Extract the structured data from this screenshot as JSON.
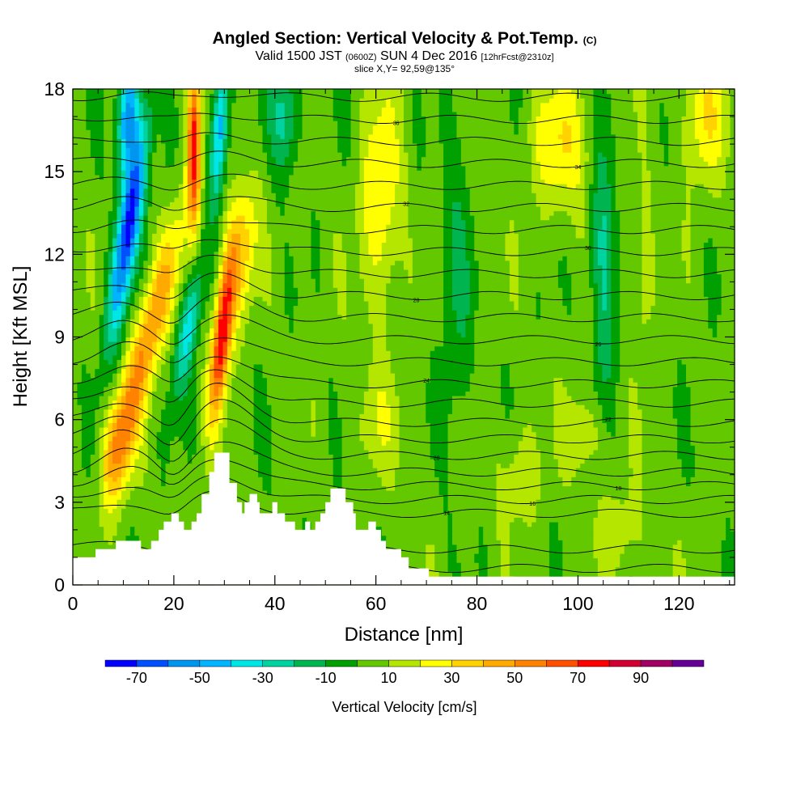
{
  "header": {
    "title": "Angled Section: Vertical Velocity & Pot.Temp.",
    "title_suffix": "(C)",
    "valid_prefix": "Valid 1500 JST",
    "valid_utc": "(0600Z)",
    "valid_date": "SUN 4 Dec 2016",
    "forecast_info": "[12hrFcst@2310z]",
    "slice_info": "slice X,Y= 92,59@135°"
  },
  "chart_data": {
    "type": "heatmap",
    "xlabel": "Distance [nm]",
    "ylabel": "Height [Kft MSL]",
    "xlim": [
      0,
      131
    ],
    "ylim": [
      0,
      18
    ],
    "x_ticks": [
      0,
      20,
      40,
      60,
      80,
      100,
      120
    ],
    "y_ticks": [
      0,
      3,
      6,
      9,
      12,
      15,
      18
    ],
    "colorbar": {
      "label": "Vertical Velocity [cm/s]",
      "tick_labels": [
        "-70",
        "-50",
        "-30",
        "-10",
        "10",
        "30",
        "50",
        "70",
        "90"
      ],
      "tick_values": [
        -70,
        -50,
        -30,
        -10,
        10,
        30,
        50,
        70,
        90
      ],
      "bins": [
        {
          "from": -80,
          "to": -70,
          "color": "#0000ff"
        },
        {
          "from": -70,
          "to": -60,
          "color": "#0050ff"
        },
        {
          "from": -60,
          "to": -50,
          "color": "#0096f0"
        },
        {
          "from": -50,
          "to": -40,
          "color": "#00b4ff"
        },
        {
          "from": -40,
          "to": -30,
          "color": "#00e6e6"
        },
        {
          "from": -30,
          "to": -20,
          "color": "#00d2a0"
        },
        {
          "from": -20,
          "to": -10,
          "color": "#00b450"
        },
        {
          "from": -10,
          "to": 0,
          "color": "#00a000"
        },
        {
          "from": 0,
          "to": 10,
          "color": "#64c800"
        },
        {
          "from": 10,
          "to": 20,
          "color": "#b4e600"
        },
        {
          "from": 20,
          "to": 30,
          "color": "#ffff00"
        },
        {
          "from": 30,
          "to": 40,
          "color": "#ffd200"
        },
        {
          "from": 40,
          "to": 50,
          "color": "#ffaa00"
        },
        {
          "from": 50,
          "to": 60,
          "color": "#ff8200"
        },
        {
          "from": 60,
          "to": 70,
          "color": "#ff5000"
        },
        {
          "from": 70,
          "to": 80,
          "color": "#ff0000"
        },
        {
          "from": 80,
          "to": 90,
          "color": "#d20032"
        },
        {
          "from": 90,
          "to": 100,
          "color": "#a00064"
        },
        {
          "from": 100,
          "to": 110,
          "color": "#640096"
        }
      ]
    },
    "velocity_features": [
      {
        "name": "downdraft",
        "x": 11,
        "y": 13,
        "sx": 2.2,
        "sy": 3.8,
        "tilt": 0.8,
        "amp": -78
      },
      {
        "name": "downdraft",
        "x": 11,
        "y": 17,
        "sx": 2.0,
        "sy": 2.0,
        "tilt": 0.3,
        "amp": -60
      },
      {
        "name": "updraft",
        "x": 15,
        "y": 9,
        "sx": 3.0,
        "sy": 4.0,
        "tilt": 1.3,
        "amp": 48
      },
      {
        "name": "updraft",
        "x": 9,
        "y": 5,
        "sx": 3.0,
        "sy": 2.0,
        "tilt": 0.5,
        "amp": 38
      },
      {
        "name": "updraft",
        "x": 24,
        "y": 16,
        "sx": 1.3,
        "sy": 3.0,
        "tilt": 0.0,
        "amp": 72
      },
      {
        "name": "downdraft",
        "x": 23,
        "y": 9.5,
        "sx": 2.0,
        "sy": 2.5,
        "tilt": 0.8,
        "amp": -38
      },
      {
        "name": "downdraft",
        "x": 29,
        "y": 16.5,
        "sx": 1.6,
        "sy": 2.4,
        "tilt": 0.3,
        "amp": -55
      },
      {
        "name": "updraft",
        "x": 29.5,
        "y": 9,
        "sx": 1.8,
        "sy": 2.8,
        "tilt": 0.5,
        "amp": 75
      },
      {
        "name": "updraft",
        "x": 33,
        "y": 12,
        "sx": 3.0,
        "sy": 2.5,
        "tilt": 0.5,
        "amp": 35
      },
      {
        "name": "downdraft",
        "x": 42,
        "y": 17,
        "sx": 3.0,
        "sy": 2.0,
        "tilt": 0.0,
        "amp": -28
      },
      {
        "name": "updraft",
        "x": 61,
        "y": 14,
        "sx": 4.0,
        "sy": 4.0,
        "tilt": 0.0,
        "amp": 26
      },
      {
        "name": "downdraft",
        "x": 76,
        "y": 11,
        "sx": 3.0,
        "sy": 6.0,
        "tilt": 0.0,
        "amp": -14
      },
      {
        "name": "updraft",
        "x": 97,
        "y": 16,
        "sx": 6.0,
        "sy": 2.5,
        "tilt": 0.0,
        "amp": 25
      },
      {
        "name": "downdraft",
        "x": 105,
        "y": 12,
        "sx": 2.5,
        "sy": 5.0,
        "tilt": 0.0,
        "amp": -28
      },
      {
        "name": "updraft",
        "x": 125,
        "y": 17,
        "sx": 4.0,
        "sy": 2.5,
        "tilt": 0.0,
        "amp": 25
      },
      {
        "name": "updraft",
        "x": 113,
        "y": 11,
        "sx": 2.0,
        "sy": 3.0,
        "tilt": 0.0,
        "amp": 14
      },
      {
        "name": "updraft",
        "x": 88,
        "y": 4,
        "sx": 4.0,
        "sy": 2.0,
        "tilt": 0.0,
        "amp": 14
      },
      {
        "name": "updraft",
        "x": 101,
        "y": 5.5,
        "sx": 4.0,
        "sy": 1.5,
        "tilt": 0.0,
        "amp": 18
      },
      {
        "name": "updraft",
        "x": 60,
        "y": 6,
        "sx": 5.0,
        "sy": 2.0,
        "tilt": 0.0,
        "amp": 12
      },
      {
        "name": "updraft",
        "x": 108,
        "y": 2,
        "sx": 5.0,
        "sy": 1.5,
        "tilt": 0.0,
        "amp": 14
      }
    ],
    "terrain": [
      {
        "x": 0,
        "h": 1.0
      },
      {
        "x": 4.5,
        "h": 1.0
      },
      {
        "x": 4.5,
        "h": 1.3
      },
      {
        "x": 8.5,
        "h": 1.3
      },
      {
        "x": 8.5,
        "h": 1.6
      },
      {
        "x": 13.5,
        "h": 1.6
      },
      {
        "x": 13.5,
        "h": 1.3
      },
      {
        "x": 15.5,
        "h": 1.3
      },
      {
        "x": 15.5,
        "h": 1.6
      },
      {
        "x": 17,
        "h": 1.6
      },
      {
        "x": 17,
        "h": 2.0
      },
      {
        "x": 18,
        "h": 2.0
      },
      {
        "x": 18,
        "h": 2.3
      },
      {
        "x": 19.5,
        "h": 2.3
      },
      {
        "x": 19.5,
        "h": 2.6
      },
      {
        "x": 21,
        "h": 2.6
      },
      {
        "x": 21,
        "h": 2.3
      },
      {
        "x": 22,
        "h": 2.3
      },
      {
        "x": 22,
        "h": 2.0
      },
      {
        "x": 23.5,
        "h": 2.0
      },
      {
        "x": 23.5,
        "h": 2.3
      },
      {
        "x": 24.5,
        "h": 2.3
      },
      {
        "x": 24.5,
        "h": 2.6
      },
      {
        "x": 25.5,
        "h": 2.6
      },
      {
        "x": 25.5,
        "h": 3.3
      },
      {
        "x": 27,
        "h": 3.3
      },
      {
        "x": 27,
        "h": 4.1
      },
      {
        "x": 28,
        "h": 4.1
      },
      {
        "x": 28,
        "h": 4.8
      },
      {
        "x": 31,
        "h": 4.8
      },
      {
        "x": 31,
        "h": 3.7
      },
      {
        "x": 32.5,
        "h": 3.7
      },
      {
        "x": 32.5,
        "h": 3.0
      },
      {
        "x": 33.5,
        "h": 3.0
      },
      {
        "x": 33.5,
        "h": 2.6
      },
      {
        "x": 34,
        "h": 2.6
      },
      {
        "x": 34,
        "h": 3.0
      },
      {
        "x": 35,
        "h": 3.0
      },
      {
        "x": 35,
        "h": 3.3
      },
      {
        "x": 36.5,
        "h": 3.3
      },
      {
        "x": 36.5,
        "h": 3.0
      },
      {
        "x": 37,
        "h": 3.0
      },
      {
        "x": 37,
        "h": 2.6
      },
      {
        "x": 39.5,
        "h": 2.6
      },
      {
        "x": 39.5,
        "h": 3.0
      },
      {
        "x": 40.5,
        "h": 3.0
      },
      {
        "x": 40.5,
        "h": 2.6
      },
      {
        "x": 42,
        "h": 2.6
      },
      {
        "x": 42,
        "h": 2.3
      },
      {
        "x": 44,
        "h": 2.3
      },
      {
        "x": 44,
        "h": 2.0
      },
      {
        "x": 46,
        "h": 2.0
      },
      {
        "x": 46,
        "h": 2.3
      },
      {
        "x": 47,
        "h": 2.3
      },
      {
        "x": 47,
        "h": 2.0
      },
      {
        "x": 48,
        "h": 2.0
      },
      {
        "x": 48,
        "h": 2.3
      },
      {
        "x": 49,
        "h": 2.3
      },
      {
        "x": 49,
        "h": 2.6
      },
      {
        "x": 50,
        "h": 2.6
      },
      {
        "x": 50,
        "h": 3.0
      },
      {
        "x": 51,
        "h": 3.0
      },
      {
        "x": 51,
        "h": 3.5
      },
      {
        "x": 54,
        "h": 3.5
      },
      {
        "x": 54,
        "h": 3.0
      },
      {
        "x": 55.5,
        "h": 3.0
      },
      {
        "x": 55.5,
        "h": 2.6
      },
      {
        "x": 56,
        "h": 2.6
      },
      {
        "x": 56,
        "h": 2.0
      },
      {
        "x": 58.5,
        "h": 2.0
      },
      {
        "x": 58.5,
        "h": 2.3
      },
      {
        "x": 60,
        "h": 2.3
      },
      {
        "x": 60,
        "h": 2.0
      },
      {
        "x": 61,
        "h": 2.0
      },
      {
        "x": 61,
        "h": 1.6
      },
      {
        "x": 62,
        "h": 1.6
      },
      {
        "x": 62,
        "h": 1.3
      },
      {
        "x": 65,
        "h": 1.3
      },
      {
        "x": 65,
        "h": 1.0
      },
      {
        "x": 66.5,
        "h": 1.0
      },
      {
        "x": 66.5,
        "h": 0.6
      },
      {
        "x": 70.5,
        "h": 0.6
      },
      {
        "x": 70.5,
        "h": 0.3
      },
      {
        "x": 131,
        "h": 0.3
      }
    ],
    "isentropes": [
      {
        "label": "28",
        "base": 0.6,
        "amp": 0.0
      },
      {
        "label": "",
        "base": 1.3,
        "amp": 0.4
      },
      {
        "label": "14",
        "base": 2.6,
        "amp": 0.7
      },
      {
        "label": "16",
        "base": 3.1,
        "amp": 0.9
      },
      {
        "label": "18",
        "base": 3.6,
        "amp": 1.1
      },
      {
        "label": "",
        "base": 4.1,
        "amp": 1.2
      },
      {
        "label": "20",
        "base": 4.7,
        "amp": 1.3
      },
      {
        "label": "",
        "base": 5.3,
        "amp": 1.3
      },
      {
        "label": "22",
        "base": 5.9,
        "amp": 1.3
      },
      {
        "label": "",
        "base": 6.6,
        "amp": 1.2
      },
      {
        "label": "24",
        "base": 7.3,
        "amp": 1.1
      },
      {
        "label": "",
        "base": 8.1,
        "amp": 1.0
      },
      {
        "label": "26",
        "base": 8.9,
        "amp": 0.9
      },
      {
        "label": "",
        "base": 9.7,
        "amp": 0.8
      },
      {
        "label": "28",
        "base": 10.5,
        "amp": 0.7
      },
      {
        "label": "",
        "base": 11.3,
        "amp": 0.6
      },
      {
        "label": "30",
        "base": 12.1,
        "amp": 0.5
      },
      {
        "label": "",
        "base": 12.9,
        "amp": 0.4
      },
      {
        "label": "32",
        "base": 13.7,
        "amp": 0.4
      },
      {
        "label": "",
        "base": 14.5,
        "amp": 0.3
      },
      {
        "label": "34",
        "base": 15.3,
        "amp": 0.3
      },
      {
        "label": "",
        "base": 16.1,
        "amp": 0.2
      },
      {
        "label": "36",
        "base": 16.9,
        "amp": 0.2
      },
      {
        "label": "",
        "base": 17.7,
        "amp": 0.15
      }
    ]
  }
}
